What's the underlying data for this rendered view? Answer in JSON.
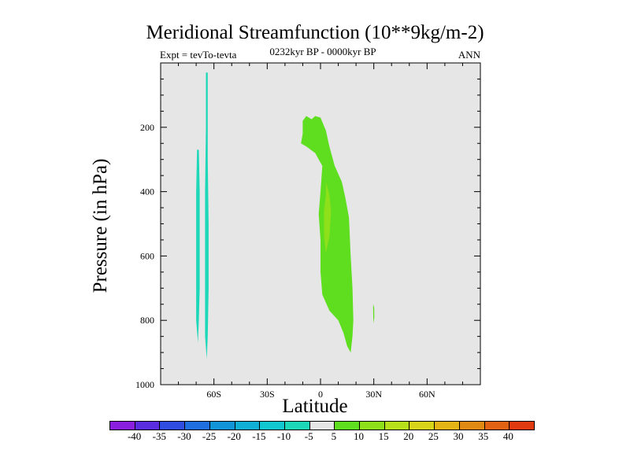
{
  "chart_data": {
    "type": "heatmap",
    "title": "Meridional Streamfunction (10**9kg/m-2)",
    "subtitle": "0232kyr BP - 0000kyr BP",
    "left_label": "Expt = tevTo-tevta",
    "right_label": "ANN",
    "xlabel": "Latitude",
    "ylabel": "Pressure (in hPa)",
    "xlim": [
      -90,
      90
    ],
    "ylim": [
      1000,
      0
    ],
    "y_reversed": true,
    "x_ticks": [
      {
        "value": -60,
        "label": "60S"
      },
      {
        "value": -30,
        "label": "30S"
      },
      {
        "value": 0,
        "label": "0"
      },
      {
        "value": 30,
        "label": "30N"
      },
      {
        "value": 60,
        "label": "60N"
      }
    ],
    "y_ticks": [
      {
        "value": 200,
        "label": "200"
      },
      {
        "value": 400,
        "label": "400"
      },
      {
        "value": 600,
        "label": "600"
      },
      {
        "value": 800,
        "label": "800"
      },
      {
        "value": 1000,
        "label": "1000"
      }
    ],
    "background_color": "#e6e6e6",
    "contour_levels": [
      -40,
      -35,
      -30,
      -25,
      -20,
      -15,
      -10,
      -5,
      5,
      10,
      15,
      20,
      25,
      30,
      35,
      40
    ],
    "colorbar_colors": [
      "#8a1fe0",
      "#5b2de0",
      "#2f4de0",
      "#1f6fe0",
      "#1295d8",
      "#10b0d6",
      "#12c8d0",
      "#1dd8b8",
      "#e6e6e6",
      "#5ede1f",
      "#8de01a",
      "#b7e01a",
      "#d8d41a",
      "#e4b316",
      "#e08a14",
      "#e06212",
      "#e03a10"
    ],
    "filled_regions": [
      {
        "level_range": "-10 to -5",
        "color": "#1dd8b8",
        "points": [
          [
            -69.5,
            270
          ],
          [
            -68.5,
            270
          ],
          [
            -68,
            400
          ],
          [
            -68,
            700
          ],
          [
            -68.5,
            800
          ],
          [
            -69,
            870
          ],
          [
            -70,
            800
          ],
          [
            -70,
            600
          ],
          [
            -70,
            400
          ]
        ]
      },
      {
        "level_range": "-10 to -5",
        "color": "#1dd8b8",
        "points": [
          [
            -64.5,
            30
          ],
          [
            -63.5,
            30
          ],
          [
            -63.5,
            300
          ],
          [
            -63,
            500
          ],
          [
            -63,
            700
          ],
          [
            -63.5,
            850
          ],
          [
            -64,
            920
          ],
          [
            -65,
            850
          ],
          [
            -65,
            700
          ],
          [
            -65,
            400
          ],
          [
            -64.5,
            200
          ]
        ]
      },
      {
        "level_range": "5 to 10",
        "color": "#5ede1f",
        "points": [
          [
            -10,
            180
          ],
          [
            -8,
            165
          ],
          [
            -5,
            175
          ],
          [
            -3,
            165
          ],
          [
            0,
            170
          ],
          [
            3,
            210
          ],
          [
            5,
            260
          ],
          [
            8,
            320
          ],
          [
            12,
            370
          ],
          [
            14,
            420
          ],
          [
            16,
            480
          ],
          [
            17,
            600
          ],
          [
            18,
            700
          ],
          [
            18.5,
            800
          ],
          [
            18,
            850
          ],
          [
            17,
            900
          ],
          [
            15,
            880
          ],
          [
            13,
            840
          ],
          [
            10,
            800
          ],
          [
            5,
            770
          ],
          [
            1,
            720
          ],
          [
            0,
            650
          ],
          [
            0,
            550
          ],
          [
            -1,
            470
          ],
          [
            0,
            400
          ],
          [
            1,
            320
          ],
          [
            -3,
            280
          ],
          [
            -8,
            260
          ],
          [
            -11,
            250
          ],
          [
            -10,
            220
          ]
        ]
      },
      {
        "level_range": "10 to 15",
        "color": "#8de01a",
        "points": [
          [
            3,
            370
          ],
          [
            5,
            410
          ],
          [
            6,
            460
          ],
          [
            5,
            540
          ],
          [
            3,
            590
          ],
          [
            2,
            540
          ],
          [
            2,
            460
          ],
          [
            3,
            410
          ]
        ]
      },
      {
        "level_range": "5 to 10",
        "color": "#5ede1f",
        "points": [
          [
            29.6,
            750
          ],
          [
            30.2,
            760
          ],
          [
            30.3,
            790
          ],
          [
            29.9,
            810
          ],
          [
            29.7,
            790
          ]
        ]
      }
    ]
  }
}
